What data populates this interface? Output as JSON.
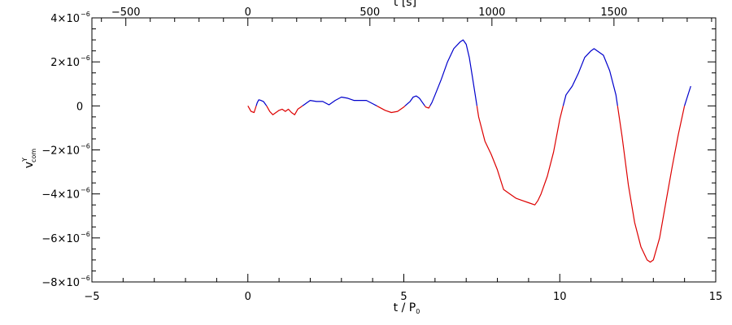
{
  "chart_data": {
    "type": "line",
    "xlabel": "t / P",
    "xlabel_sub": "0",
    "ylabel": "v",
    "ylabel_sup": "Y",
    "ylabel_sub": "com",
    "top_axis_label": "t [s]",
    "xlim": [
      -5,
      15
    ],
    "ylim": [
      -8e-06,
      4e-06
    ],
    "top_xlim": [
      -639,
      1917
    ],
    "x_ticks": [
      -5,
      0,
      5,
      10,
      15
    ],
    "x_tick_labels": [
      "−5",
      "0",
      "5",
      "10",
      "15"
    ],
    "top_ticks": [
      -500,
      0,
      500,
      1000,
      1500
    ],
    "top_tick_labels": [
      "−500",
      "0",
      "500",
      "1000",
      "1500"
    ],
    "y_ticks": [
      4e-06,
      2e-06,
      0,
      -2e-06,
      -4e-06,
      -6e-06,
      -8e-06
    ],
    "y_tick_mantissa": [
      "4×10",
      "2×10",
      "0",
      "−2×10",
      "−4×10",
      "−6×10",
      "−8×10"
    ],
    "y_tick_exponent": [
      "−6",
      "−6",
      "",
      "−6",
      "−6",
      "−6",
      "−6"
    ],
    "grid": false,
    "colors": {
      "positive": "#0000cc",
      "negative": "#dd0000",
      "axes": "#000000"
    },
    "color_rule": "segments with v ≥ 0 drawn in blue, v < 0 in red",
    "series": [
      {
        "x": [
          0.0,
          0.1,
          0.2,
          0.3,
          0.35,
          0.4,
          0.5,
          0.6,
          0.7,
          0.8,
          0.9,
          1.0,
          1.1,
          1.2,
          1.3,
          1.4,
          1.5,
          1.6,
          1.7,
          1.8,
          1.9,
          2.0,
          2.2,
          2.4,
          2.6,
          2.8,
          3.0,
          3.2,
          3.4,
          3.6,
          3.8,
          4.0,
          4.2,
          4.4,
          4.6,
          4.8,
          5.0,
          5.2,
          5.3,
          5.4,
          5.5,
          5.6,
          5.7,
          5.8,
          5.9,
          6.0,
          6.2,
          6.4,
          6.6,
          6.8,
          6.9,
          7.0,
          7.1,
          7.2,
          7.4,
          7.6,
          7.8,
          8.0,
          8.2,
          8.4,
          8.6,
          8.8,
          9.0,
          9.2,
          9.3,
          9.4,
          9.6,
          9.8,
          10.0,
          10.2,
          10.4,
          10.6,
          10.8,
          11.0,
          11.1,
          11.2,
          11.4,
          11.6,
          11.8,
          12.0,
          12.2,
          12.4,
          12.6,
          12.8,
          12.9,
          13.0,
          13.2,
          13.4,
          13.6,
          13.8,
          14.0,
          14.2
        ],
        "y": [
          0.0,
          -2.5e-07,
          -3e-07,
          1.5e-07,
          2.8e-07,
          2.6e-07,
          2e-07,
          0.0,
          -2.5e-07,
          -4e-07,
          -3e-07,
          -2e-07,
          -1.5e-07,
          -2.5e-07,
          -1.5e-07,
          -3e-07,
          -4e-07,
          -1.5e-07,
          -5e-08,
          5e-08,
          1.5e-07,
          2.5e-07,
          2e-07,
          2e-07,
          5e-08,
          2.5e-07,
          4e-07,
          3.5e-07,
          2.5e-07,
          2.5e-07,
          2.5e-07,
          1e-07,
          -5e-08,
          -2e-07,
          -3e-07,
          -2.5e-07,
          -5e-08,
          2e-07,
          4e-07,
          4.5e-07,
          3.5e-07,
          1.5e-07,
          -5e-08,
          -1e-07,
          1.5e-07,
          5e-07,
          1.2e-06,
          2e-06,
          2.6e-06,
          2.9e-06,
          3e-06,
          2.8e-06,
          2.2e-06,
          1.3e-06,
          -5e-07,
          -1.6e-06,
          -2.2e-06,
          -2.9e-06,
          -3.8e-06,
          -4e-06,
          -4.2e-06,
          -4.3e-06,
          -4.4e-06,
          -4.5e-06,
          -4.3e-06,
          -4e-06,
          -3.2e-06,
          -2.1e-06,
          -6e-07,
          5e-07,
          9e-07,
          1.5e-06,
          2.2e-06,
          2.5e-06,
          2.6e-06,
          2.5e-06,
          2.3e-06,
          1.6e-06,
          5e-07,
          -1.4e-06,
          -3.6e-06,
          -5.3e-06,
          -6.4e-06,
          -7e-06,
          -7.1e-06,
          -7e-06,
          -6e-06,
          -4.4e-06,
          -2.8e-06,
          -1.3e-06,
          0.0,
          9e-07
        ]
      }
    ]
  }
}
